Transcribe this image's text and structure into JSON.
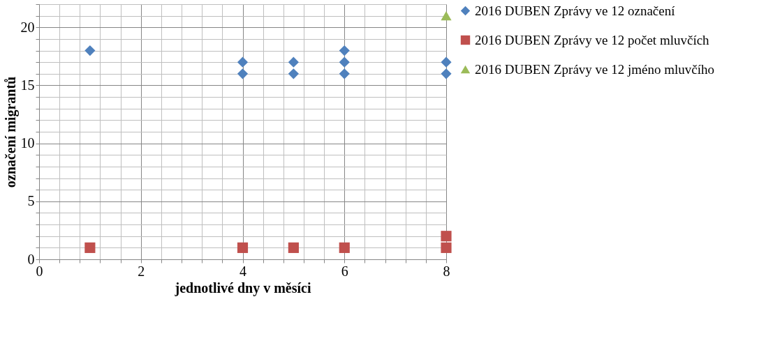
{
  "chart_data": {
    "type": "scatter",
    "xlabel": "jednotlivé dny v měsíci",
    "ylabel": "označení migrantů",
    "xlim": [
      0,
      8
    ],
    "xticks": [
      0,
      {
        "value": 0.4,
        "label": null
      },
      {
        "value": 0.8,
        "label": null
      },
      {
        "value": 1.2,
        "label": null
      },
      {
        "value": 1.6,
        "label": null
      },
      2,
      {
        "value": 2.4,
        "label": null
      },
      {
        "value": 2.8,
        "label": null
      },
      {
        "value": 3.2,
        "label": null
      },
      {
        "value": 3.6,
        "label": null
      },
      4,
      {
        "value": 4.4,
        "label": null
      },
      {
        "value": 4.8,
        "label": null
      },
      {
        "value": 5.2,
        "label": null
      },
      {
        "value": 5.6,
        "label": null
      },
      6,
      {
        "value": 6.4,
        "label": null
      },
      {
        "value": 6.8,
        "label": null
      },
      {
        "value": 7.2,
        "label": null
      },
      {
        "value": 7.6,
        "label": null
      },
      8
    ],
    "ylim": [
      0,
      22
    ],
    "yticks": [
      0,
      {
        "value": 1,
        "label": null
      },
      {
        "value": 2,
        "label": null
      },
      {
        "value": 3,
        "label": null
      },
      {
        "value": 4,
        "label": null
      },
      5,
      {
        "value": 6,
        "label": null
      },
      {
        "value": 7,
        "label": null
      },
      {
        "value": 8,
        "label": null
      },
      {
        "value": 9,
        "label": null
      },
      10,
      {
        "value": 11,
        "label": null
      },
      {
        "value": 12,
        "label": null
      },
      {
        "value": 13,
        "label": null
      },
      {
        "value": 14,
        "label": null
      },
      15,
      {
        "value": 16,
        "label": null
      },
      {
        "value": 17,
        "label": null
      },
      {
        "value": 18,
        "label": null
      },
      {
        "value": 19,
        "label": null
      },
      20,
      {
        "value": 21,
        "label": null
      },
      {
        "value": 22,
        "label": null
      }
    ],
    "grid": true,
    "legend": "right",
    "series": [
      {
        "name": "2016 DUBEN Zprávy ve 12 označení",
        "color": "#4f81bd",
        "marker": "diamond",
        "x": [
          1,
          4,
          4,
          5,
          5,
          6,
          6,
          6,
          8,
          8
        ],
        "values": [
          18,
          17,
          16,
          17,
          16,
          18,
          17,
          16,
          17,
          16
        ]
      },
      {
        "name": "2016 DUBEN Zprávy ve 12 počet mluvčích",
        "color": "#c0504d",
        "marker": "square",
        "x": [
          1,
          4,
          5,
          6,
          8,
          8
        ],
        "values": [
          1,
          1,
          1,
          1,
          1,
          2
        ]
      },
      {
        "name": "2016 DUBEN Zprávy ve 12 jméno mluvčího",
        "color": "#9bbb59",
        "marker": "triangle",
        "x": [
          8
        ],
        "values": [
          21
        ]
      }
    ]
  }
}
